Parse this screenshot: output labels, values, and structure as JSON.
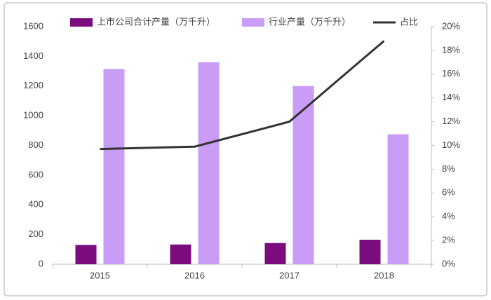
{
  "chart_data": {
    "type": "bar-line",
    "categories": [
      "2015",
      "2016",
      "2017",
      "2018"
    ],
    "series": [
      {
        "name": "上市公司合计产量（万千升）",
        "color": "#7b0c7e",
        "values": [
          130,
          133,
          143,
          165
        ]
      },
      {
        "name": "行业产量（万千升）",
        "color": "#c99cf6",
        "values": [
          1315,
          1360,
          1200,
          875
        ]
      },
      {
        "name": "占比",
        "color": "#333333",
        "axis": "y2",
        "type": "line",
        "values": [
          9.7,
          9.9,
          12.0,
          18.8
        ]
      }
    ],
    "ylim": [
      0,
      1600
    ],
    "yticks": [
      0,
      200,
      400,
      600,
      800,
      1000,
      1200,
      1400,
      1600
    ],
    "y2lim": [
      0,
      20
    ],
    "y2ticks": [
      {
        "value": 0,
        "label": "0%"
      },
      {
        "value": 2,
        "label": "2%"
      },
      {
        "value": 4,
        "label": "4%"
      },
      {
        "value": 6,
        "label": "6%"
      },
      {
        "value": 8,
        "label": "8%"
      },
      {
        "value": 10,
        "label": "10%"
      },
      {
        "value": 12,
        "label": "12%"
      },
      {
        "value": 14,
        "label": "14%"
      },
      {
        "value": 16,
        "label": "16%"
      },
      {
        "value": 18,
        "label": "18%"
      },
      {
        "value": 20,
        "label": "20%"
      }
    ],
    "grid": false,
    "legend": "top"
  }
}
